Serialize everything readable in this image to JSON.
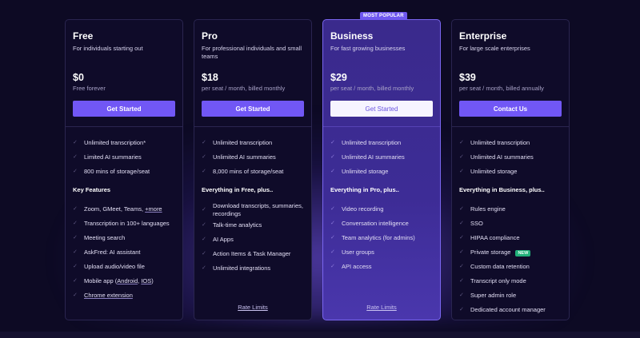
{
  "colors": {
    "background": "#0d0a24",
    "accent": "#7157f5",
    "highlight_card": "#3d2c96",
    "new_badge": "#22b07a"
  },
  "plans": [
    {
      "name": "Free",
      "subtitle": "For individuals starting out",
      "price": "$0",
      "price_note": "Free forever",
      "button": "Get Started",
      "highlight": false,
      "features": [
        [
          {
            "t": "Unlimited transcription*"
          }
        ],
        [
          {
            "t": "Limited AI summaries"
          }
        ],
        [
          {
            "t": "800 mins of storage/seat"
          }
        ]
      ],
      "section_heading": "Key Features",
      "extras": [
        [
          {
            "t": "Zoom, GMeet, Teams, "
          },
          {
            "t": "+more",
            "link": true
          }
        ],
        [
          {
            "t": "Transcription in 100+ languages"
          }
        ],
        [
          {
            "t": "Meeting search"
          }
        ],
        [
          {
            "t": "AskFred: AI assistant"
          }
        ],
        [
          {
            "t": "Upload audio/video file"
          }
        ],
        [
          {
            "t": "Mobile app ("
          },
          {
            "t": "Android",
            "link": true
          },
          {
            "t": ", "
          },
          {
            "t": "IOS",
            "link": true
          },
          {
            "t": ")"
          }
        ],
        [
          {
            "t": "Chrome extension",
            "link": true
          }
        ]
      ]
    },
    {
      "name": "Pro",
      "subtitle": "For professional individuals and small teams",
      "price": "$18",
      "price_note": "per seat / month, billed monthly",
      "button": "Get Started",
      "highlight": false,
      "features": [
        [
          {
            "t": "Unlimited transcription"
          }
        ],
        [
          {
            "t": "Unlimited AI summaries"
          }
        ],
        [
          {
            "t": "8,000 mins of storage/seat"
          }
        ]
      ],
      "section_heading": "Everything in Free, plus..",
      "extras": [
        [
          {
            "t": "Download transcripts, summaries, recordings"
          }
        ],
        [
          {
            "t": "Talk-time analytics"
          }
        ],
        [
          {
            "t": "AI Apps"
          }
        ],
        [
          {
            "t": "Action Items & Task Manager"
          }
        ],
        [
          {
            "t": "Unlimited integrations"
          }
        ]
      ],
      "rate_limits": "Rate Limits"
    },
    {
      "name": "Business",
      "badge": "MOST POPULAR",
      "subtitle": "For fast growing businesses",
      "price": "$29",
      "price_note": "per seat / month, billed monthly",
      "button": "Get Started",
      "highlight": true,
      "features": [
        [
          {
            "t": "Unlimited transcription"
          }
        ],
        [
          {
            "t": "Unlimited AI summaries"
          }
        ],
        [
          {
            "t": "Unlimited storage"
          }
        ]
      ],
      "section_heading": "Everything in Pro, plus..",
      "extras": [
        [
          {
            "t": "Video recording"
          }
        ],
        [
          {
            "t": "Conversation intelligence"
          }
        ],
        [
          {
            "t": "Team analytics (for admins)"
          }
        ],
        [
          {
            "t": "User groups"
          }
        ],
        [
          {
            "t": "API access"
          }
        ]
      ],
      "rate_limits": "Rate Limits"
    },
    {
      "name": "Enterprise",
      "subtitle": "For large scale enterprises",
      "price": "$39",
      "price_note": "per seat / month, billed annually",
      "button": "Contact Us",
      "highlight": false,
      "features": [
        [
          {
            "t": "Unlimited transcription"
          }
        ],
        [
          {
            "t": "Unlimited AI summaries"
          }
        ],
        [
          {
            "t": "Unlimited storage"
          }
        ]
      ],
      "section_heading": "Everything in Business, plus..",
      "extras": [
        [
          {
            "t": "Rules engine"
          }
        ],
        [
          {
            "t": "SSO"
          }
        ],
        [
          {
            "t": "HIPAA compliance"
          }
        ],
        [
          {
            "t": "Private storage"
          },
          {
            "t": "NEW",
            "badge": true
          }
        ],
        [
          {
            "t": "Custom data retention"
          }
        ],
        [
          {
            "t": "Transcript only mode"
          }
        ],
        [
          {
            "t": "Super admin role"
          }
        ],
        [
          {
            "t": "Dedicated account manager"
          }
        ]
      ]
    }
  ]
}
